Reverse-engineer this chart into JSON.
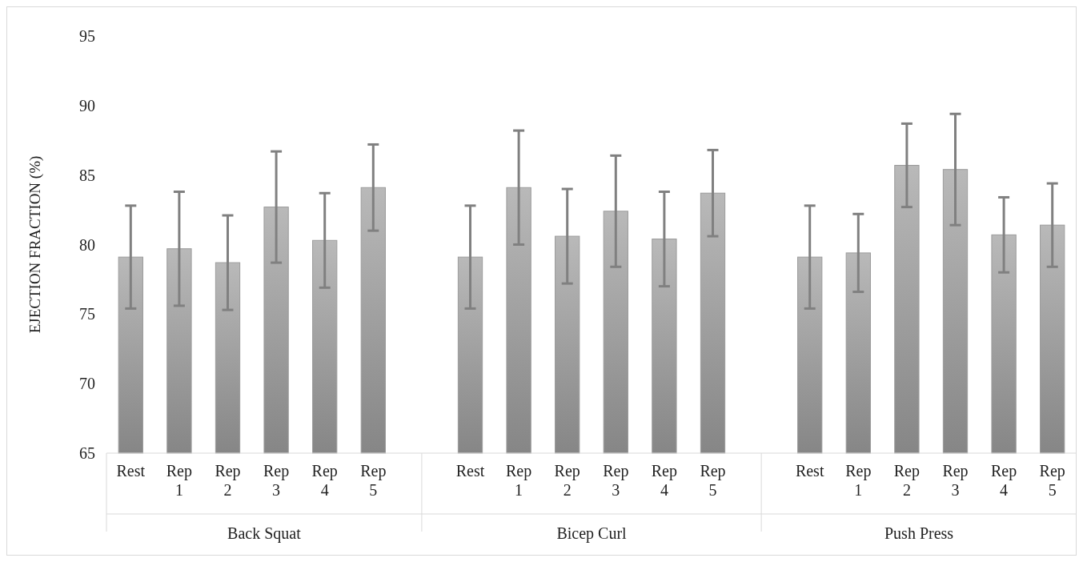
{
  "chart_data": {
    "type": "bar",
    "ylabel": "EJECTION FRACTION (%)",
    "categories": [
      "Rest",
      "Rep 1",
      "Rep 2",
      "Rep 3",
      "Rep 4",
      "Rep 5",
      null,
      "Rest",
      "Rep 1",
      "Rep 2",
      "Rep 3",
      "Rep 4",
      "Rep 5",
      null,
      "Rest",
      "Rep 1",
      "Rep 2",
      "Rep 3",
      "Rep 4",
      "Rep 5"
    ],
    "values": [
      79.1,
      79.7,
      78.7,
      82.7,
      80.3,
      84.1,
      null,
      79.1,
      84.1,
      80.6,
      82.4,
      80.4,
      83.7,
      null,
      79.1,
      79.4,
      85.7,
      85.4,
      80.7,
      81.4
    ],
    "errors": [
      3.7,
      4.1,
      3.4,
      4.0,
      3.4,
      3.1,
      null,
      3.7,
      4.1,
      3.4,
      4.0,
      3.4,
      3.1,
      null,
      3.7,
      2.8,
      3.0,
      4.0,
      2.7,
      3.0
    ],
    "color": "#a6a6a6",
    "ylim": [
      65,
      95
    ],
    "yticks": [
      65,
      70,
      75,
      80,
      85,
      90,
      95
    ],
    "annotations": [
      "Back Squat",
      "Bicep Curl",
      "Push Press"
    ]
  }
}
